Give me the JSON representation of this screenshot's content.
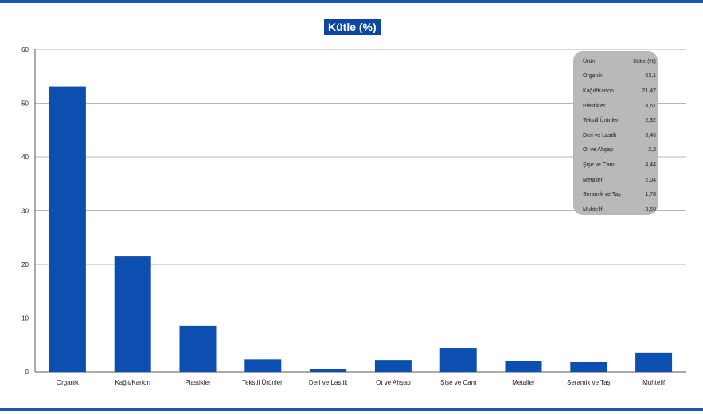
{
  "chart_data": {
    "type": "bar",
    "title": "Kütle (%)",
    "xlabel": "",
    "ylabel": "",
    "categories": [
      "Organik",
      "Kağıt/Karton",
      "Plastikler",
      "Tekstil Ürünleri",
      "Deri ve Lastik",
      "Ot ve Ahşap",
      "Şişe ve Cam",
      "Metaller",
      "Seramik ve Taş",
      "Muhtelif"
    ],
    "values": [
      53.1,
      21.47,
      8.61,
      2.32,
      0.46,
      2.2,
      4.44,
      2.04,
      1.78,
      3.58
    ],
    "ylim": [
      0,
      60
    ],
    "yticks": [
      0,
      10,
      20,
      30,
      40,
      50,
      60
    ],
    "grid": true,
    "legend": "none",
    "bar_color": "#0d4fb0",
    "table": {
      "headers": [
        "Ürün",
        "Kütle (%)"
      ],
      "rows": [
        [
          "Organik",
          "53,1"
        ],
        [
          "Kağıt/Karton",
          "21,47"
        ],
        [
          "Plastikler",
          "8,61"
        ],
        [
          "Tekstil Ürünleri",
          "2,32"
        ],
        [
          "Deri ve Lastik",
          "0,46"
        ],
        [
          "Ot ve Ahşap",
          "2,2"
        ],
        [
          "Şişe ve Cam",
          "4,44"
        ],
        [
          "Metaller",
          "2,04"
        ],
        [
          "Seramik ve Taş",
          "1,78"
        ],
        [
          "Muhtelif",
          "3,58"
        ]
      ]
    }
  },
  "colors": {
    "rule": "#1a55b0",
    "title_bg": "#0d47a1",
    "table_bg": "#b9b9b9",
    "grid": "#b5b5b5"
  }
}
